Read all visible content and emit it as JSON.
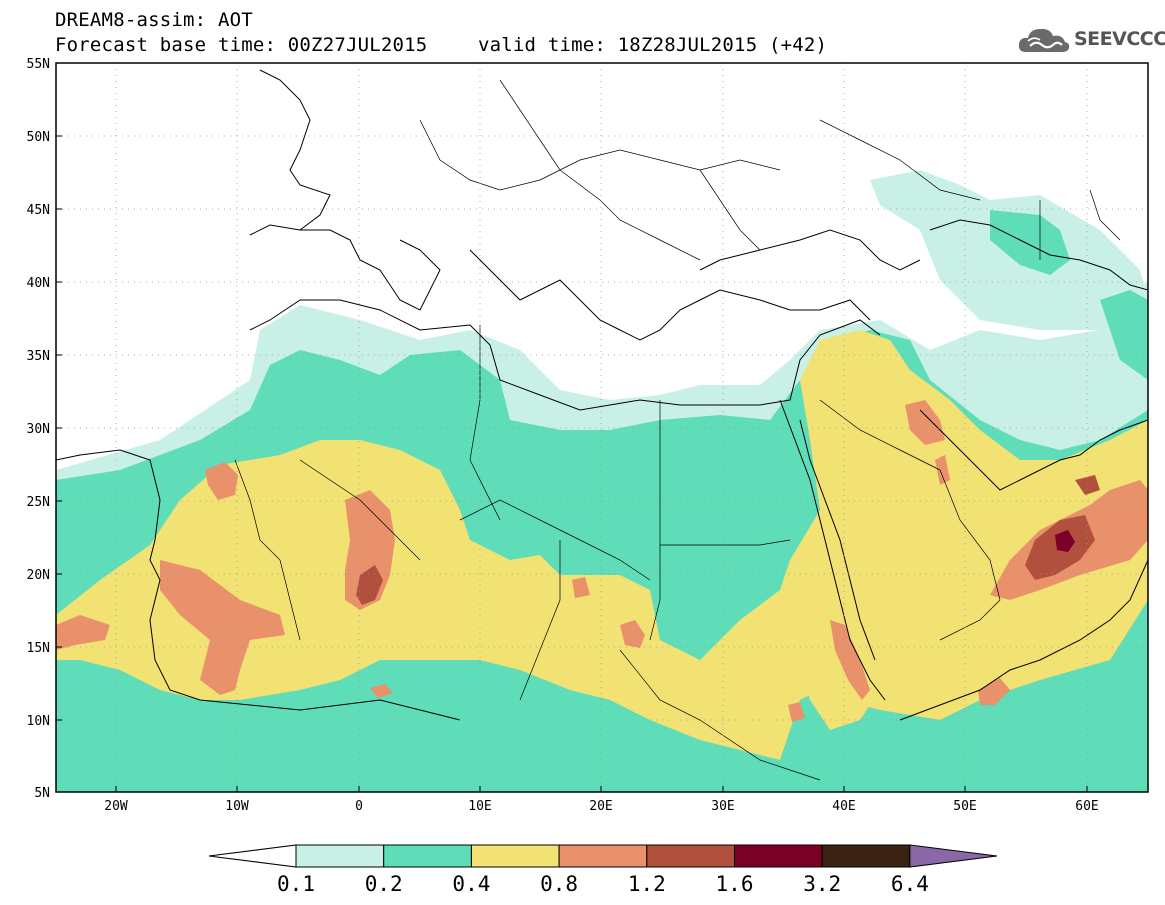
{
  "header": {
    "line1": "DREAM8-assim: AOT",
    "line2_base": "Forecast base time: 00Z27JUL2015",
    "line2_valid": "valid time: 18Z28JUL2015 (+42)"
  },
  "logo": {
    "text": "SEEVCCC",
    "icon": "cloud-logo-icon"
  },
  "map": {
    "lon_range": [
      -25,
      65
    ],
    "lat_range": [
      5,
      55
    ],
    "lat_labels": [
      "55N",
      "50N",
      "45N",
      "40N",
      "35N",
      "30N",
      "25N",
      "20N",
      "15N",
      "10N",
      "5N"
    ],
    "lon_labels": [
      "20W",
      "10W",
      "0",
      "10E",
      "20E",
      "30E",
      "40E",
      "50E",
      "60E"
    ],
    "gridlines": "dotted"
  },
  "colorbar": {
    "labels": [
      "0.1",
      "0.2",
      "0.4",
      "0.8",
      "1.2",
      "1.6",
      "3.2",
      "6.4"
    ],
    "colors": {
      "below": "#ffffff",
      "c1": "#c8f0e6",
      "c2": "#5fdcb8",
      "c3": "#f2e173",
      "c4": "#e8916a",
      "c5": "#b2503e",
      "c6": "#7a0026",
      "c7": "#3a2212",
      "above": "#8a68a8"
    }
  }
}
